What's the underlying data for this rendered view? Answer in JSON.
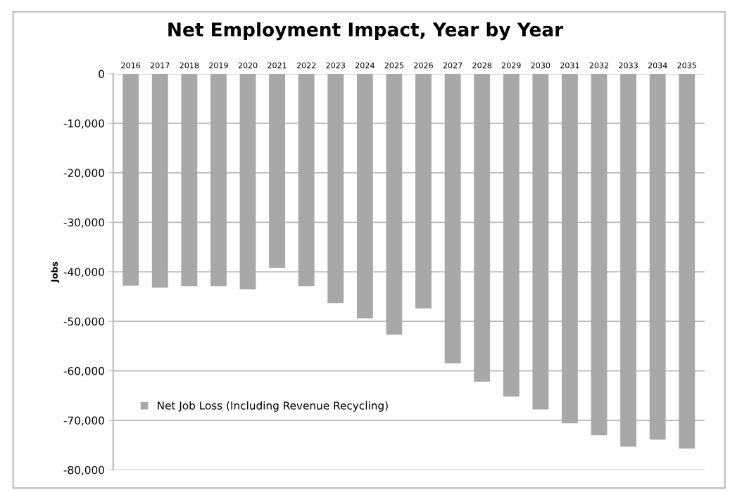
{
  "chart_data": {
    "type": "bar",
    "title": "Net Employment Impact, Year by Year",
    "ylabel": "Jobs",
    "categories": [
      "2016",
      "2017",
      "2018",
      "2019",
      "2020",
      "2021",
      "2022",
      "2023",
      "2024",
      "2025",
      "2026",
      "2027",
      "2028",
      "2029",
      "2030",
      "2031",
      "2032",
      "2033",
      "2034",
      "2035"
    ],
    "series": [
      {
        "name": "Net Job Loss (Including Revenue Recycling)",
        "color": "#a8a8a8",
        "values": [
          -42800,
          -43200,
          -42900,
          -42900,
          -43500,
          -39200,
          -42900,
          -46300,
          -49400,
          -52700,
          -47400,
          -58500,
          -62200,
          -65200,
          -67800,
          -70600,
          -73000,
          -75300,
          -73900,
          -75700
        ]
      }
    ],
    "ylim": [
      -80000,
      0
    ],
    "yticks": [
      0,
      {
        "value": -10000,
        "label": "-10,000"
      },
      {
        "value": -20000,
        "label": "-20,000"
      },
      {
        "value": -30000,
        "label": "-30,000"
      },
      {
        "value": -40000,
        "label": "-40,000"
      },
      {
        "value": -50000,
        "label": "-50,000"
      },
      {
        "value": -60000,
        "label": "-60,000"
      },
      {
        "value": -70000,
        "label": "-70,000"
      },
      {
        "value": -80000,
        "label": "-80,000"
      }
    ],
    "grid": "y",
    "legend": "left"
  }
}
